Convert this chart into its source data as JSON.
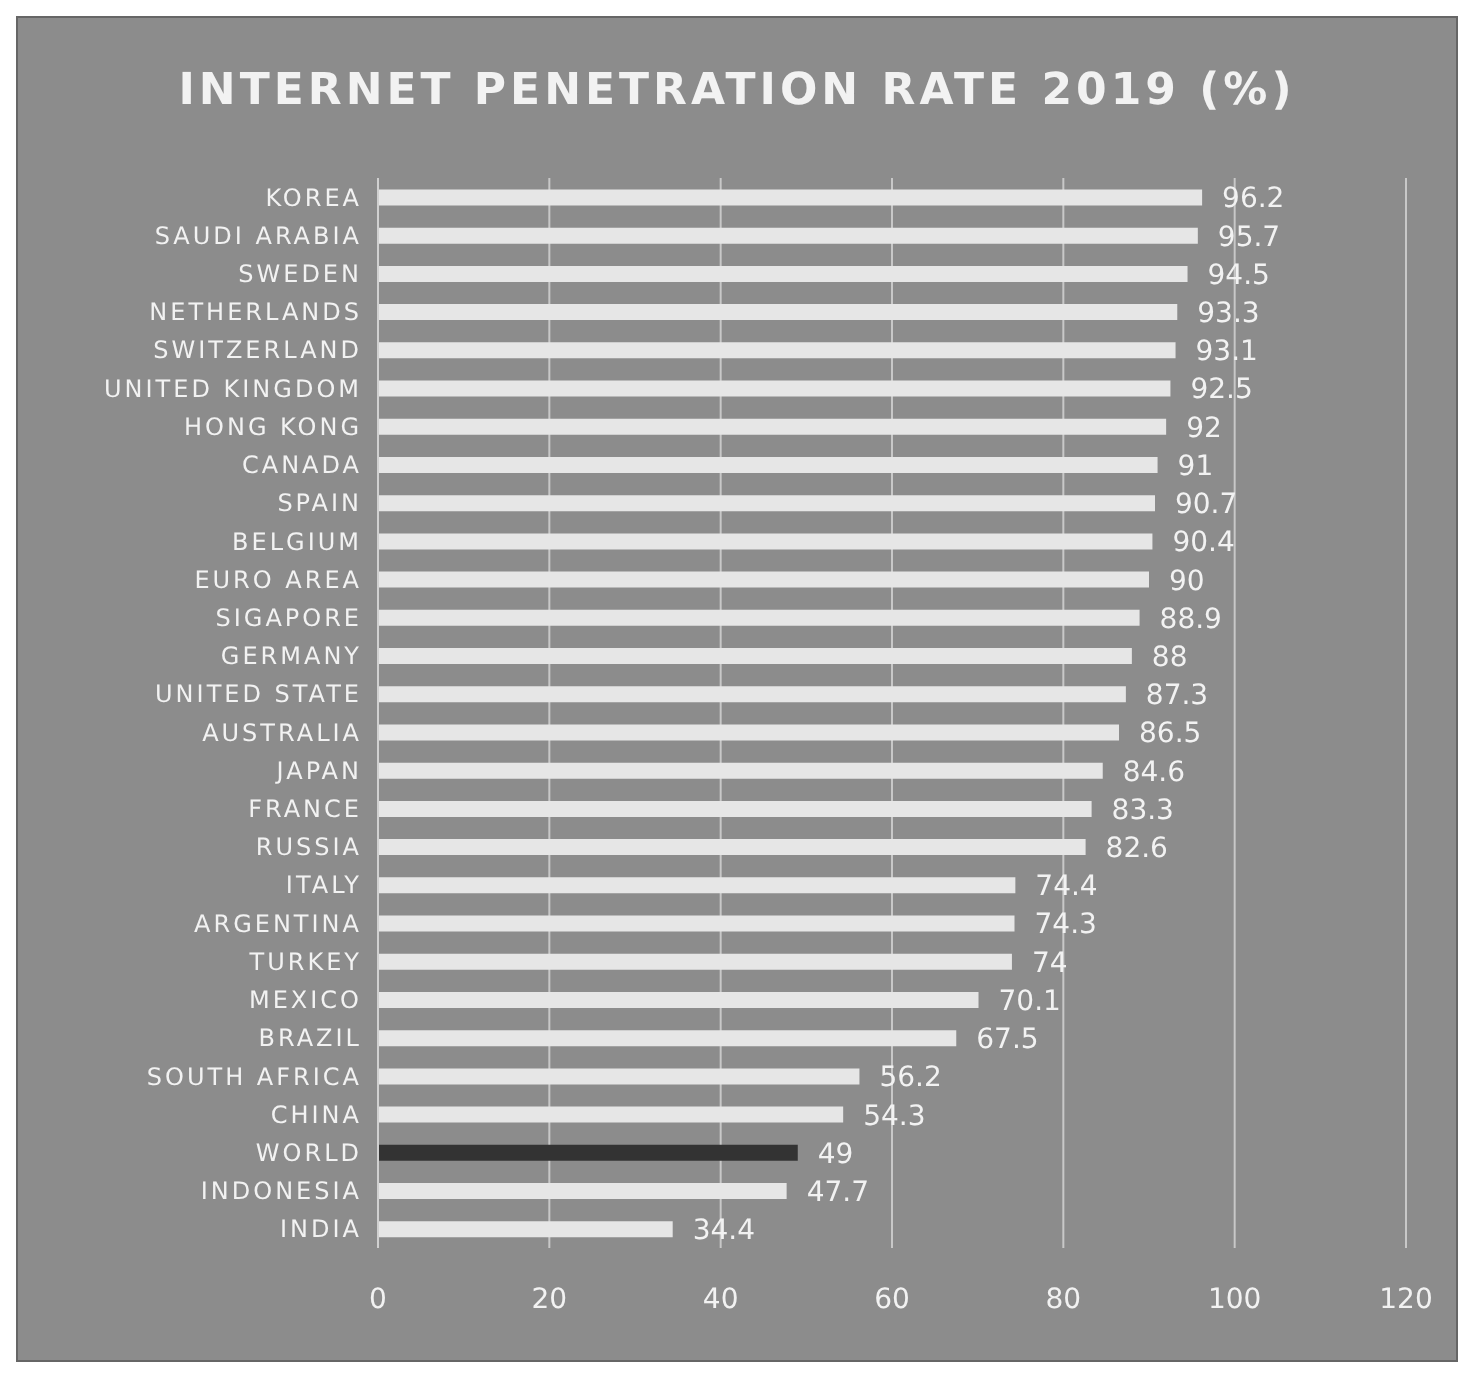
{
  "chart_data": {
    "type": "bar",
    "orientation": "horizontal",
    "title": "INTERNET PENETRATION RATE 2019 (%)",
    "categories": [
      "KOREA",
      "SAUDI ARABIA",
      "SWEDEN",
      "NETHERLANDS",
      "SWITZERLAND",
      "UNITED KINGDOM",
      "HONG KONG",
      "CANADA",
      "SPAIN",
      "BELGIUM",
      "EURO AREA",
      "SIGAPORE",
      "GERMANY",
      "UNITED STATE",
      "AUSTRALIA",
      "JAPAN",
      "FRANCE",
      "RUSSIA",
      "ITALY",
      "ARGENTINA",
      "TURKEY",
      "MEXICO",
      "BRAZIL",
      "SOUTH AFRICA",
      "CHINA",
      "WORLD",
      "INDONESIA",
      "INDIA"
    ],
    "values": [
      96.2,
      95.7,
      94.5,
      93.3,
      93.1,
      92.5,
      92,
      91,
      90.7,
      90.4,
      90,
      88.9,
      88,
      87.3,
      86.5,
      84.6,
      83.3,
      82.6,
      74.4,
      74.3,
      74,
      70.1,
      67.5,
      56.2,
      54.3,
      49,
      47.7,
      34.4
    ],
    "colors": [
      "#e6e6e6",
      "#e6e6e6",
      "#e6e6e6",
      "#e6e6e6",
      "#e6e6e6",
      "#e6e6e6",
      "#e6e6e6",
      "#e6e6e6",
      "#e6e6e6",
      "#e6e6e6",
      "#e6e6e6",
      "#e6e6e6",
      "#e6e6e6",
      "#e6e6e6",
      "#e6e6e6",
      "#e6e6e6",
      "#e6e6e6",
      "#e6e6e6",
      "#e6e6e6",
      "#e6e6e6",
      "#e6e6e6",
      "#e6e6e6",
      "#e6e6e6",
      "#e6e6e6",
      "#e6e6e6",
      "#333333",
      "#e6e6e6",
      "#e6e6e6"
    ],
    "xlim": [
      0,
      120
    ],
    "xticks": [
      0,
      20,
      40,
      60,
      80,
      100,
      120
    ],
    "grid": "x",
    "data_labels": true
  }
}
